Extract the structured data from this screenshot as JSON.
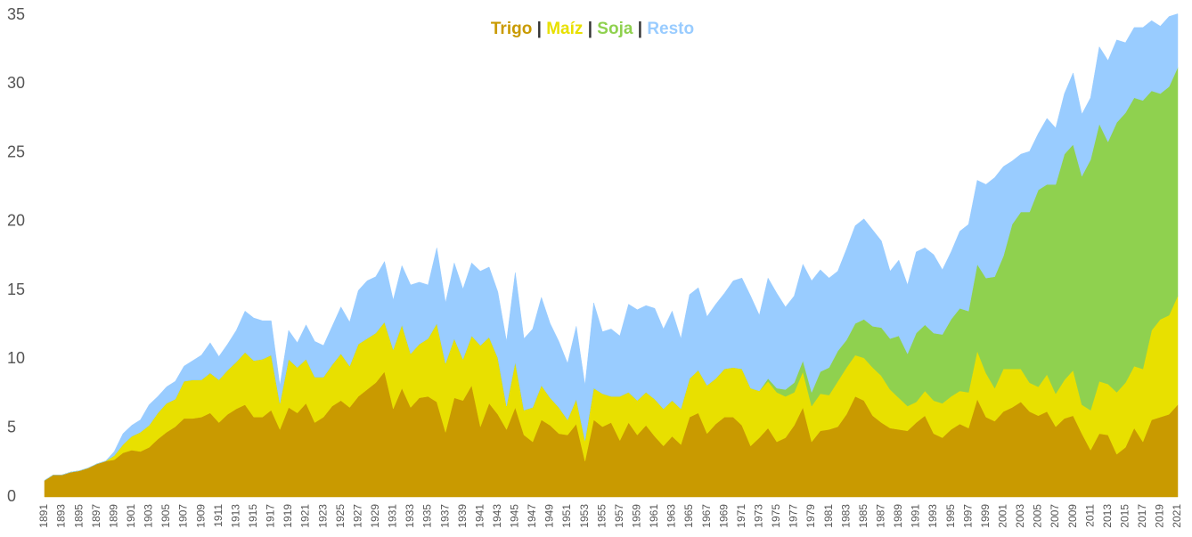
{
  "chart_data": {
    "type": "stacked_area",
    "legend_separator": "|",
    "legend": "top",
    "grid": false,
    "ylim": [
      0,
      35
    ],
    "yticks": [
      0,
      5,
      10,
      15,
      20,
      25,
      30,
      35
    ],
    "categories": [
      "1891",
      null,
      "1893",
      null,
      "1895",
      null,
      "1897",
      null,
      "1899",
      null,
      "1901",
      null,
      "1903",
      null,
      "1905",
      null,
      "1907",
      null,
      "1909",
      null,
      "1911",
      null,
      "1913",
      null,
      "1915",
      null,
      "1917",
      null,
      "1919",
      null,
      "1921",
      null,
      "1923",
      null,
      "1925",
      null,
      "1927",
      null,
      "1929",
      null,
      "1931",
      null,
      "1933",
      null,
      "1935",
      null,
      "1937",
      null,
      "1939",
      null,
      "1941",
      null,
      "1943",
      null,
      "1945",
      null,
      "1947",
      null,
      "1949",
      null,
      "1951",
      null,
      "1953",
      null,
      "1955",
      null,
      "1957",
      null,
      "1959",
      null,
      "1961",
      null,
      "1963",
      null,
      "1965",
      null,
      "1967",
      null,
      "1969",
      null,
      "1971",
      null,
      "1973",
      null,
      "1975",
      null,
      "1977",
      null,
      "1979",
      null,
      "1981",
      null,
      "1983",
      null,
      "1985",
      null,
      "1987",
      null,
      "1989",
      null,
      "1991",
      null,
      "1993",
      null,
      "1995",
      null,
      "1997",
      null,
      "1999",
      null,
      "2001",
      null,
      "2003",
      null,
      "2005",
      null,
      "2007",
      null,
      "2009",
      null,
      "2011",
      null,
      "2013",
      null,
      "2015",
      null,
      "2017",
      null,
      "2019",
      null,
      "2021"
    ],
    "series": [
      {
        "name": "Trigo",
        "color": "#c99a00",
        "values": [
          1.2,
          1.6,
          1.6,
          1.8,
          1.9,
          2.1,
          2.4,
          2.6,
          2.7,
          3.2,
          3.4,
          3.3,
          3.6,
          4.2,
          4.7,
          5.1,
          5.7,
          5.7,
          5.8,
          6.1,
          5.4,
          6.0,
          6.4,
          6.7,
          5.8,
          5.8,
          6.3,
          4.9,
          6.5,
          6.1,
          6.8,
          5.4,
          5.8,
          6.6,
          7.0,
          6.5,
          7.3,
          7.8,
          8.3,
          9.1,
          6.4,
          7.9,
          6.5,
          7.2,
          7.3,
          6.9,
          4.7,
          7.2,
          7.0,
          8.1,
          5.1,
          6.8,
          6.0,
          4.9,
          6.5,
          4.5,
          4.0,
          5.6,
          5.2,
          4.6,
          4.5,
          5.3,
          2.6,
          5.6,
          5.1,
          5.4,
          4.1,
          5.4,
          4.5,
          5.2,
          4.4,
          3.7,
          4.4,
          3.8,
          5.8,
          6.1,
          4.6,
          5.3,
          5.8,
          5.8,
          5.2,
          3.7,
          4.3,
          5.0,
          4.0,
          4.3,
          5.2,
          6.5,
          4.0,
          4.8,
          4.9,
          5.1,
          6.0,
          7.3,
          7.0,
          5.9,
          5.4,
          5.0,
          4.9,
          4.8,
          5.4,
          5.9,
          4.6,
          4.3,
          4.9,
          5.3,
          5.0,
          7.1,
          5.8,
          5.5,
          6.2,
          6.5,
          6.9,
          6.2,
          5.9,
          6.2,
          5.1,
          5.7,
          5.9,
          4.6,
          3.4,
          4.6,
          4.5,
          3.1,
          3.6,
          5.0,
          4.0,
          5.6,
          5.8,
          6.0,
          6.7
        ]
      },
      {
        "name": "Maíz",
        "color": "#e8e000",
        "values": [
          0,
          0,
          0,
          0,
          0,
          0,
          0,
          0,
          0.3,
          0.6,
          1.0,
          1.4,
          1.6,
          1.9,
          2.1,
          2.0,
          2.7,
          2.8,
          2.7,
          2.9,
          3.1,
          3.2,
          3.4,
          3.8,
          4.1,
          4.2,
          4.0,
          1.9,
          3.5,
          3.3,
          3.2,
          3.3,
          2.9,
          3.0,
          3.4,
          3.0,
          3.8,
          3.7,
          3.6,
          3.6,
          4.3,
          4.6,
          3.9,
          3.9,
          4.2,
          5.7,
          5.0,
          4.3,
          3.0,
          3.6,
          5.9,
          4.8,
          4.1,
          1.7,
          3.3,
          1.8,
          2.5,
          2.5,
          2.0,
          1.9,
          1.1,
          1.8,
          1.5,
          2.3,
          2.4,
          1.9,
          3.2,
          2.2,
          2.5,
          2.4,
          2.7,
          2.7,
          2.6,
          2.6,
          2.8,
          3.1,
          3.5,
          3.3,
          3.5,
          3.6,
          4.1,
          4.2,
          3.4,
          3.4,
          3.6,
          3.0,
          2.4,
          2.6,
          2.6,
          2.7,
          2.5,
          3.3,
          3.4,
          3.0,
          3.1,
          3.5,
          3.4,
          2.8,
          2.3,
          1.8,
          1.5,
          1.8,
          2.4,
          2.5,
          2.4,
          2.4,
          2.6,
          3.5,
          3.2,
          2.4,
          3.1,
          2.8,
          2.4,
          2.1,
          2.1,
          2.7,
          2.4,
          2.8,
          3.3,
          2.1,
          2.9,
          3.8,
          3.7,
          4.5,
          4.7,
          4.5,
          5.3,
          6.5,
          7.1,
          7.2,
          7.9
        ]
      },
      {
        "name": "Soja",
        "color": "#8fd14f",
        "values": [
          0,
          0,
          0,
          0,
          0,
          0,
          0,
          0,
          0,
          0,
          0,
          0,
          0,
          0,
          0,
          0,
          0,
          0,
          0,
          0,
          0,
          0,
          0,
          0,
          0,
          0,
          0,
          0,
          0,
          0,
          0,
          0,
          0,
          0,
          0,
          0,
          0,
          0,
          0,
          0,
          0,
          0,
          0,
          0,
          0,
          0,
          0,
          0,
          0,
          0,
          0,
          0,
          0,
          0,
          0,
          0,
          0,
          0,
          0,
          0,
          0,
          0,
          0,
          0,
          0,
          0,
          0,
          0,
          0,
          0,
          0,
          0,
          0,
          0,
          0,
          0,
          0,
          0,
          0,
          0,
          0,
          0,
          0,
          0.2,
          0.3,
          0.5,
          0.7,
          0.8,
          1.0,
          1.6,
          2.0,
          2.2,
          2.0,
          2.3,
          2.8,
          3.0,
          3.5,
          3.7,
          4.5,
          3.8,
          5.0,
          4.8,
          4.9,
          5.0,
          5.6,
          6.0,
          5.9,
          6.3,
          6.9,
          8.1,
          8.2,
          10.5,
          11.4,
          12.4,
          14.3,
          13.8,
          15.2,
          16.4,
          16.4,
          16.6,
          18.2,
          18.7,
          17.6,
          19.6,
          19.6,
          19.5,
          19.5,
          17.4,
          16.4,
          16.6,
          16.6
        ]
      },
      {
        "name": "Resto",
        "color": "#99ccff",
        "values": [
          0,
          0,
          0,
          0,
          0,
          0,
          0,
          0,
          0.3,
          0.8,
          0.8,
          0.9,
          1.5,
          1.2,
          1.2,
          1.3,
          1.1,
          1.4,
          1.8,
          2.2,
          1.7,
          1.9,
          2.3,
          3.0,
          3.1,
          2.8,
          2.5,
          1.3,
          2.1,
          1.8,
          2.5,
          2.6,
          2.3,
          2.8,
          3.4,
          3.2,
          3.9,
          4.2,
          4.1,
          4.4,
          3.6,
          4.3,
          5.0,
          4.5,
          3.9,
          5.5,
          4.4,
          5.5,
          5.1,
          5.3,
          5.4,
          5.1,
          4.8,
          4.7,
          6.5,
          5.2,
          5.7,
          6.4,
          5.4,
          4.8,
          4.1,
          5.3,
          4.0,
          6.2,
          4.5,
          4.9,
          4.4,
          6.4,
          6.6,
          6.3,
          6.6,
          5.8,
          6.5,
          5.1,
          6.1,
          6.0,
          5.0,
          5.4,
          5.5,
          6.3,
          6.6,
          6.7,
          5.5,
          7.3,
          6.9,
          6.0,
          6.3,
          7.0,
          8.1,
          7.4,
          6.5,
          5.8,
          6.6,
          7.1,
          7.3,
          7.0,
          6.3,
          4.9,
          5.5,
          5.0,
          5.9,
          5.6,
          5.7,
          4.7,
          4.9,
          5.6,
          6.3,
          6.1,
          6.8,
          7.2,
          6.5,
          4.6,
          4.2,
          4.4,
          4.1,
          4.8,
          4.1,
          4.4,
          5.2,
          4.5,
          4.5,
          5.6,
          5.9,
          6.0,
          5.1,
          5.1,
          5.3,
          5.1,
          4.9,
          5.1,
          3.9
        ]
      }
    ]
  }
}
